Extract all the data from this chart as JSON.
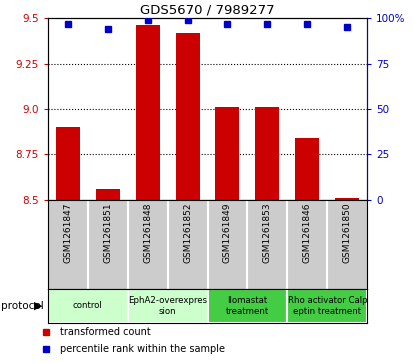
{
  "title": "GDS5670 / 7989277",
  "samples": [
    "GSM1261847",
    "GSM1261851",
    "GSM1261848",
    "GSM1261852",
    "GSM1261849",
    "GSM1261853",
    "GSM1261846",
    "GSM1261850"
  ],
  "red_values": [
    8.9,
    8.56,
    9.46,
    9.42,
    9.01,
    9.01,
    8.84,
    8.51
  ],
  "blue_values": [
    97,
    94,
    99,
    99,
    97,
    97,
    97,
    95
  ],
  "ylim_left": [
    8.5,
    9.5
  ],
  "ylim_right": [
    0,
    100
  ],
  "yticks_left": [
    8.5,
    8.75,
    9.0,
    9.25,
    9.5
  ],
  "yticks_right": [
    0,
    25,
    50,
    75,
    100
  ],
  "ytick_labels_right": [
    "0",
    "25",
    "50",
    "75",
    "100%"
  ],
  "protocols": [
    {
      "label": "control",
      "span": [
        0,
        2
      ],
      "color": "#ccffcc"
    },
    {
      "label": "EphA2-overexpres\nsion",
      "span": [
        2,
        4
      ],
      "color": "#ccffcc"
    },
    {
      "label": "Ilomastat\ntreatment",
      "span": [
        4,
        6
      ],
      "color": "#44cc44"
    },
    {
      "label": "Rho activator Calp\neptin treatment",
      "span": [
        6,
        8
      ],
      "color": "#44cc44"
    }
  ],
  "bar_color": "#cc0000",
  "dot_color": "#0000cc",
  "bar_width": 0.6,
  "sample_bg_color": "#cccccc",
  "grid_yticks": [
    8.75,
    9.0,
    9.25
  ]
}
